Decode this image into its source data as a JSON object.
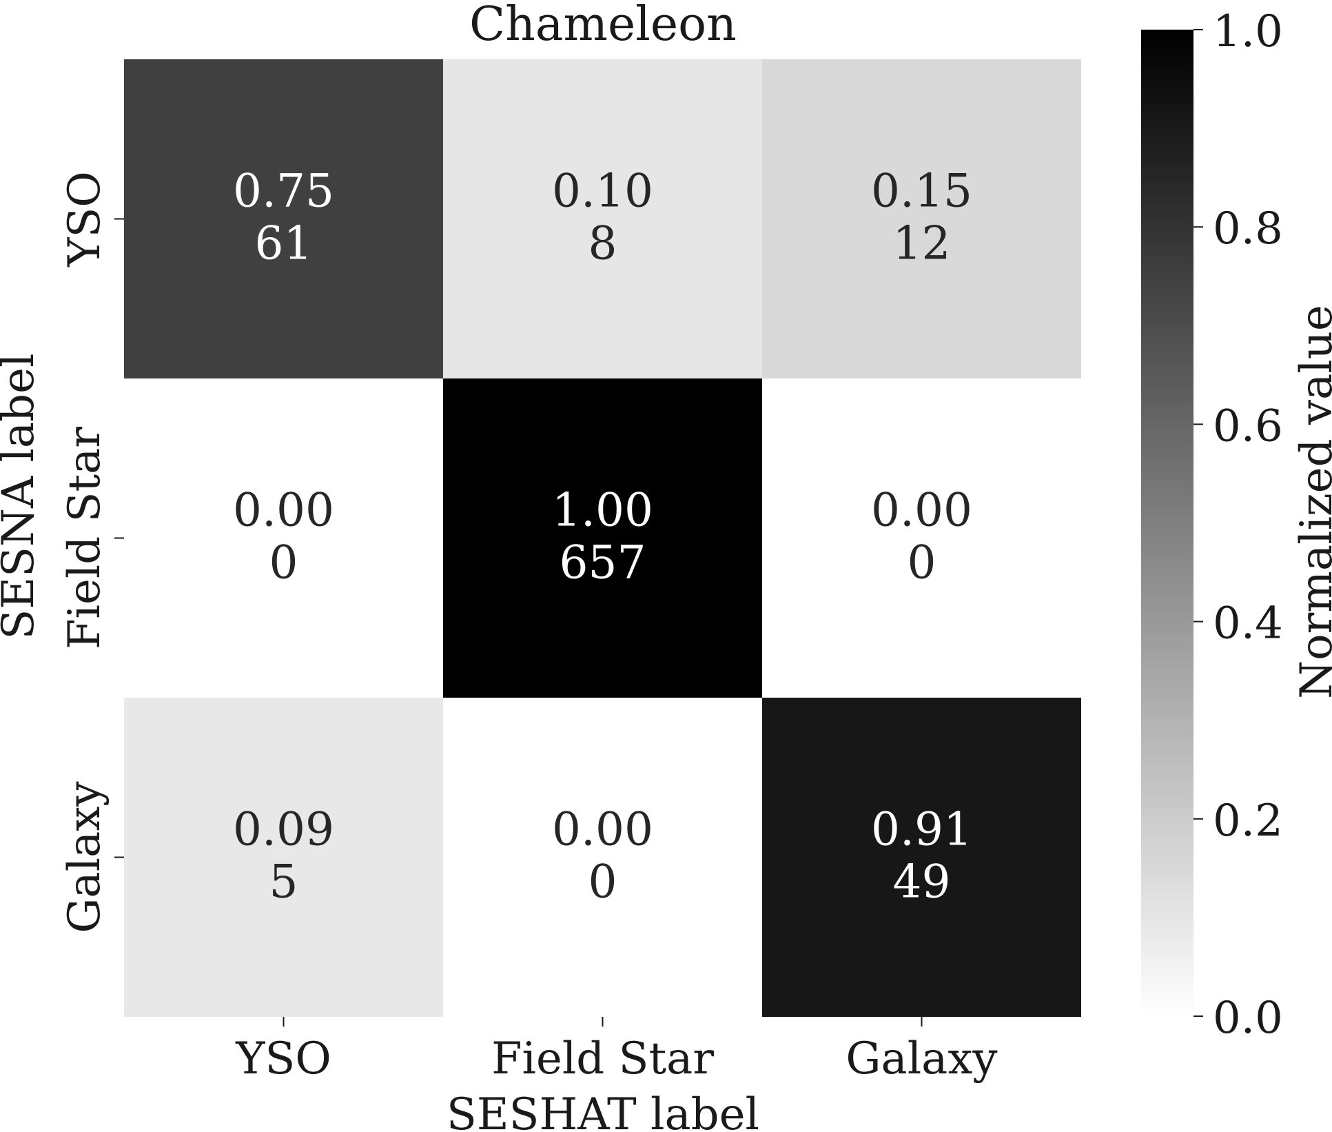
{
  "chart_data": {
    "type": "heatmap",
    "title": "Chameleon",
    "xlabel": "SESHAT label",
    "ylabel": "SESNA label",
    "x_categories": [
      "YSO",
      "Field Star",
      "Galaxy"
    ],
    "y_categories": [
      "YSO",
      "Field Star",
      "Galaxy"
    ],
    "values": [
      [
        0.75,
        0.1,
        0.15
      ],
      [
        0.0,
        1.0,
        0.0
      ],
      [
        0.09,
        0.0,
        0.91
      ]
    ],
    "value_labels": [
      [
        "0.75",
        "0.10",
        "0.15"
      ],
      [
        "0.00",
        "1.00",
        "0.00"
      ],
      [
        "0.09",
        "0.00",
        "0.91"
      ]
    ],
    "counts": [
      [
        "61",
        "8",
        "12"
      ],
      [
        "0",
        "657",
        "0"
      ],
      [
        "5",
        "0",
        "49"
      ]
    ],
    "colorbar": {
      "label": "Normalized value",
      "range": [
        0.0,
        1.0
      ],
      "ticks": [
        "0.0",
        "0.2",
        "0.4",
        "0.6",
        "0.8",
        "1.0"
      ],
      "colormap": "white-to-black (Greys)"
    }
  }
}
